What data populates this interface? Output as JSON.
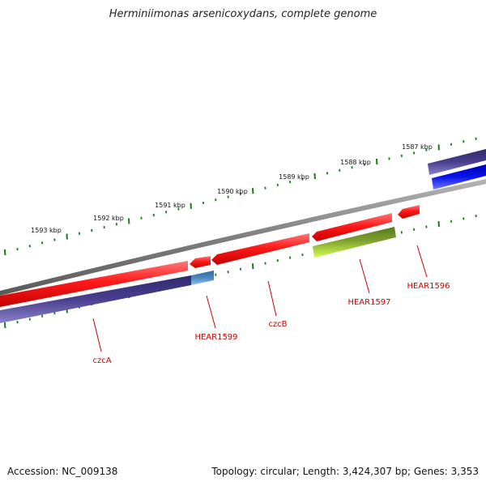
{
  "title": "Herminiimonas arsenicoxydans, complete genome",
  "footer": {
    "accession": "Accession: NC_009138",
    "info": "Topology: circular; Length: 3,424,307 bp; Genes: 3,353"
  },
  "kbp_labels": [
    "1587 kbp",
    "1588 kbp",
    "1589 kbp",
    "1590 kbp",
    "1591 kbp",
    "1592 kbp",
    "1593 kbp"
  ],
  "gene_labels": [
    "HEAR1596",
    "HEAR1597",
    "czcB",
    "HEAR1599",
    "czcA"
  ],
  "colors": {
    "backbone": "#7f7f7f",
    "gene_red": "#ff1a1a",
    "gene_navy": "#4a3f8f",
    "gene_blue": "#0a14e8",
    "gene_steel": "#4a88c0",
    "gene_olive": "#7fa030",
    "tick_green": "#1a7a1a",
    "label_red": "#cc0000"
  }
}
